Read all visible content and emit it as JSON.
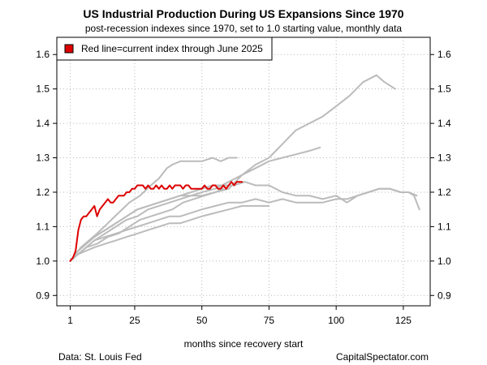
{
  "chart_data": {
    "type": "line",
    "title": "US Industrial Production During US Expansions Since 1970",
    "subtitle": "post-recession indexes since 1970, set to 1.0 starting value, monthly data",
    "xlabel": "months since recovery start",
    "ylabel": "",
    "xlim": [
      -4,
      135
    ],
    "ylim": [
      0.87,
      1.65
    ],
    "xticks": [
      1,
      25,
      50,
      75,
      100,
      125
    ],
    "yticks": [
      0.9,
      1.0,
      1.1,
      1.2,
      1.3,
      1.4,
      1.5,
      1.6
    ],
    "ytick_labels": [
      "0.9",
      "1.0",
      "1.1",
      "1.2",
      "1.3",
      "1.4",
      "1.5",
      "1.6"
    ],
    "grid": true,
    "legend": {
      "position": "top-left",
      "label": "Red line=current index through June 2025",
      "color": "#dd0000"
    },
    "series_colors": {
      "historical": "#bbbbbb",
      "current": "#dd0000"
    },
    "series": [
      {
        "name": "expansion-1",
        "highlight": false,
        "points": [
          [
            1,
            1.0
          ],
          [
            3,
            1.02
          ],
          [
            5,
            1.04
          ],
          [
            8,
            1.06
          ],
          [
            11,
            1.08
          ],
          [
            15,
            1.11
          ],
          [
            19,
            1.14
          ],
          [
            23,
            1.17
          ],
          [
            27,
            1.19
          ],
          [
            31,
            1.22
          ],
          [
            34,
            1.24
          ],
          [
            37,
            1.27
          ],
          [
            39,
            1.28
          ],
          [
            42,
            1.29
          ],
          [
            46,
            1.29
          ],
          [
            50,
            1.29
          ],
          [
            54,
            1.3
          ],
          [
            57,
            1.29
          ],
          [
            60,
            1.3
          ],
          [
            63,
            1.3
          ]
        ]
      },
      {
        "name": "expansion-2",
        "highlight": false,
        "points": [
          [
            1,
            1.0
          ],
          [
            4,
            1.03
          ],
          [
            7,
            1.05
          ],
          [
            10,
            1.07
          ],
          [
            14,
            1.09
          ],
          [
            18,
            1.11
          ],
          [
            22,
            1.13
          ],
          [
            26,
            1.15
          ],
          [
            30,
            1.16
          ],
          [
            34,
            1.17
          ],
          [
            38,
            1.18
          ],
          [
            42,
            1.19
          ],
          [
            46,
            1.2
          ],
          [
            50,
            1.21
          ],
          [
            54,
            1.22
          ],
          [
            58,
            1.22
          ],
          [
            62,
            1.22
          ],
          [
            66,
            1.23
          ],
          [
            70,
            1.22
          ],
          [
            75,
            1.22
          ],
          [
            80,
            1.2
          ],
          [
            85,
            1.19
          ],
          [
            90,
            1.19
          ],
          [
            95,
            1.18
          ],
          [
            100,
            1.19
          ],
          [
            104,
            1.17
          ],
          [
            108,
            1.19
          ],
          [
            112,
            1.2
          ],
          [
            116,
            1.21
          ],
          [
            120,
            1.21
          ],
          [
            124,
            1.2
          ],
          [
            127,
            1.2
          ],
          [
            129,
            1.19
          ],
          [
            131,
            1.15
          ]
        ]
      },
      {
        "name": "expansion-3",
        "highlight": false,
        "points": [
          [
            1,
            1.0
          ],
          [
            4,
            1.02
          ],
          [
            7,
            1.04
          ],
          [
            11,
            1.05
          ],
          [
            15,
            1.07
          ],
          [
            19,
            1.08
          ],
          [
            23,
            1.1
          ],
          [
            27,
            1.12
          ],
          [
            31,
            1.13
          ],
          [
            35,
            1.14
          ],
          [
            39,
            1.15
          ],
          [
            43,
            1.17
          ],
          [
            47,
            1.18
          ],
          [
            51,
            1.19
          ],
          [
            55,
            1.2
          ],
          [
            60,
            1.21
          ],
          [
            65,
            1.25
          ],
          [
            70,
            1.28
          ],
          [
            75,
            1.3
          ],
          [
            80,
            1.34
          ],
          [
            85,
            1.38
          ],
          [
            90,
            1.4
          ],
          [
            95,
            1.42
          ],
          [
            100,
            1.45
          ],
          [
            105,
            1.48
          ],
          [
            110,
            1.52
          ],
          [
            115,
            1.54
          ],
          [
            118,
            1.52
          ],
          [
            122,
            1.5
          ]
        ]
      },
      {
        "name": "expansion-4",
        "highlight": false,
        "points": [
          [
            1,
            1.0
          ],
          [
            4,
            1.03
          ],
          [
            7,
            1.05
          ],
          [
            10,
            1.07
          ],
          [
            14,
            1.09
          ],
          [
            18,
            1.11
          ],
          [
            22,
            1.13
          ],
          [
            26,
            1.15
          ],
          [
            30,
            1.16
          ],
          [
            34,
            1.17
          ],
          [
            38,
            1.18
          ],
          [
            42,
            1.19
          ],
          [
            46,
            1.19
          ],
          [
            50,
            1.2
          ],
          [
            55,
            1.21
          ],
          [
            60,
            1.23
          ],
          [
            65,
            1.25
          ],
          [
            70,
            1.27
          ],
          [
            75,
            1.29
          ],
          [
            80,
            1.3
          ],
          [
            85,
            1.31
          ],
          [
            90,
            1.32
          ],
          [
            94,
            1.33
          ]
        ]
      },
      {
        "name": "expansion-5",
        "highlight": false,
        "points": [
          [
            1,
            1.0
          ],
          [
            4,
            1.02
          ],
          [
            7,
            1.04
          ],
          [
            10,
            1.06
          ],
          [
            14,
            1.07
          ],
          [
            18,
            1.08
          ],
          [
            22,
            1.09
          ],
          [
            26,
            1.1
          ],
          [
            30,
            1.11
          ],
          [
            34,
            1.12
          ],
          [
            38,
            1.13
          ],
          [
            42,
            1.13
          ],
          [
            46,
            1.14
          ],
          [
            50,
            1.15
          ],
          [
            55,
            1.16
          ],
          [
            60,
            1.17
          ],
          [
            65,
            1.17
          ],
          [
            70,
            1.18
          ],
          [
            75,
            1.17
          ],
          [
            80,
            1.18
          ],
          [
            85,
            1.17
          ],
          [
            90,
            1.17
          ],
          [
            95,
            1.17
          ],
          [
            100,
            1.18
          ],
          [
            104,
            1.18
          ],
          [
            108,
            1.19
          ],
          [
            112,
            1.2
          ],
          [
            116,
            1.21
          ],
          [
            120,
            1.21
          ],
          [
            124,
            1.2
          ],
          [
            127,
            1.2
          ],
          [
            130,
            1.19
          ]
        ]
      },
      {
        "name": "expansion-6",
        "highlight": false,
        "points": [
          [
            1,
            1.0
          ],
          [
            4,
            1.02
          ],
          [
            7,
            1.03
          ],
          [
            10,
            1.04
          ],
          [
            14,
            1.05
          ],
          [
            18,
            1.06
          ],
          [
            22,
            1.07
          ],
          [
            26,
            1.08
          ],
          [
            30,
            1.09
          ],
          [
            34,
            1.1
          ],
          [
            38,
            1.11
          ],
          [
            42,
            1.11
          ],
          [
            46,
            1.12
          ],
          [
            50,
            1.13
          ],
          [
            55,
            1.14
          ],
          [
            60,
            1.15
          ],
          [
            65,
            1.16
          ],
          [
            70,
            1.16
          ],
          [
            75,
            1.16
          ]
        ]
      },
      {
        "name": "expansion-7",
        "highlight": false,
        "points": [
          [
            1,
            1.0
          ],
          [
            4,
            1.02
          ],
          [
            7,
            1.04
          ],
          [
            10,
            1.06
          ],
          [
            14,
            1.08
          ],
          [
            18,
            1.1
          ],
          [
            22,
            1.12
          ],
          [
            26,
            1.13
          ],
          [
            30,
            1.15
          ],
          [
            34,
            1.16
          ],
          [
            38,
            1.17
          ],
          [
            42,
            1.18
          ],
          [
            46,
            1.19
          ],
          [
            50,
            1.19
          ],
          [
            55,
            1.2
          ],
          [
            58,
            1.21
          ]
        ]
      },
      {
        "name": "current",
        "highlight": true,
        "points": [
          [
            1,
            1.0
          ],
          [
            2,
            1.01
          ],
          [
            3,
            1.03
          ],
          [
            4,
            1.09
          ],
          [
            5,
            1.12
          ],
          [
            6,
            1.13
          ],
          [
            7,
            1.13
          ],
          [
            8,
            1.14
          ],
          [
            9,
            1.15
          ],
          [
            10,
            1.16
          ],
          [
            11,
            1.13
          ],
          [
            12,
            1.15
          ],
          [
            13,
            1.16
          ],
          [
            14,
            1.17
          ],
          [
            15,
            1.18
          ],
          [
            16,
            1.17
          ],
          [
            17,
            1.17
          ],
          [
            18,
            1.18
          ],
          [
            19,
            1.19
          ],
          [
            20,
            1.19
          ],
          [
            21,
            1.19
          ],
          [
            22,
            1.2
          ],
          [
            23,
            1.2
          ],
          [
            24,
            1.21
          ],
          [
            25,
            1.21
          ],
          [
            26,
            1.22
          ],
          [
            27,
            1.22
          ],
          [
            28,
            1.22
          ],
          [
            29,
            1.21
          ],
          [
            30,
            1.22
          ],
          [
            31,
            1.21
          ],
          [
            32,
            1.21
          ],
          [
            33,
            1.22
          ],
          [
            34,
            1.21
          ],
          [
            35,
            1.22
          ],
          [
            36,
            1.21
          ],
          [
            37,
            1.21
          ],
          [
            38,
            1.22
          ],
          [
            39,
            1.21
          ],
          [
            40,
            1.22
          ],
          [
            41,
            1.22
          ],
          [
            42,
            1.22
          ],
          [
            43,
            1.21
          ],
          [
            44,
            1.22
          ],
          [
            45,
            1.22
          ],
          [
            46,
            1.21
          ],
          [
            47,
            1.21
          ],
          [
            48,
            1.21
          ],
          [
            49,
            1.21
          ],
          [
            50,
            1.21
          ],
          [
            51,
            1.22
          ],
          [
            52,
            1.21
          ],
          [
            53,
            1.21
          ],
          [
            54,
            1.22
          ],
          [
            55,
            1.22
          ],
          [
            56,
            1.21
          ],
          [
            57,
            1.21
          ],
          [
            58,
            1.22
          ],
          [
            59,
            1.21
          ],
          [
            60,
            1.22
          ],
          [
            61,
            1.23
          ],
          [
            62,
            1.22
          ],
          [
            63,
            1.23
          ],
          [
            64,
            1.23
          ],
          [
            65,
            1.23
          ]
        ]
      }
    ]
  },
  "footer": {
    "source": "Data: St. Louis Fed",
    "brand": "CapitalSpectator.com"
  }
}
